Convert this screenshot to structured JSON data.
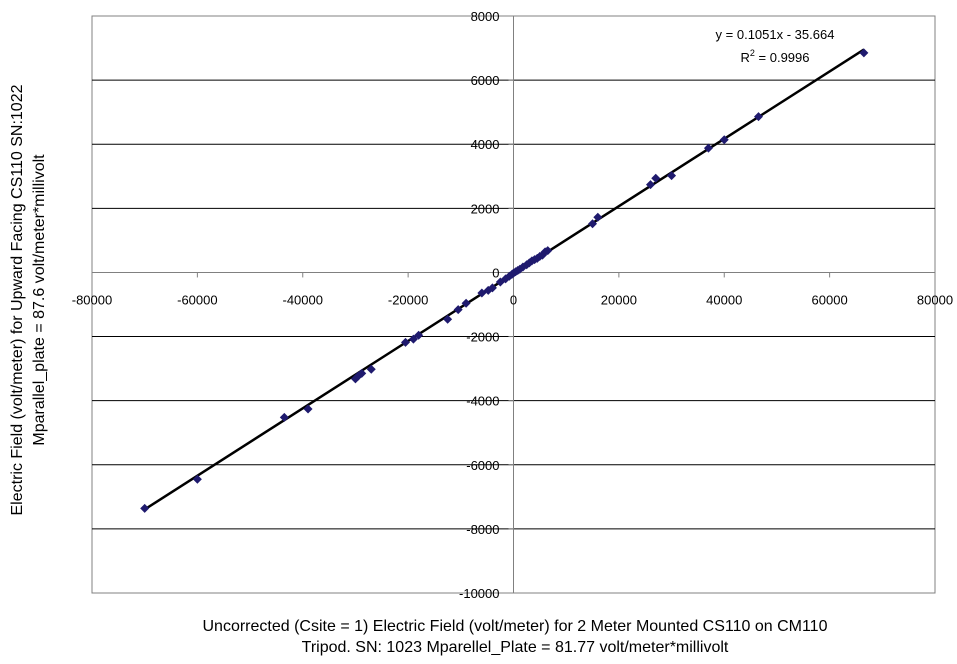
{
  "chart_data": {
    "type": "scatter",
    "xlim": [
      -80000,
      80000
    ],
    "ylim": [
      -10000,
      8000
    ],
    "x_ticks": [
      "-80000",
      "-60000",
      "-40000",
      "-20000",
      "0",
      "20000",
      "40000",
      "60000",
      "80000"
    ],
    "y_ticks": [
      "8000",
      "6000",
      "4000",
      "2000",
      "0",
      "-2000",
      "-4000",
      "-6000",
      "-8000",
      "-10000"
    ],
    "grid": "horizontal major gridlines",
    "xlabel_line1": "Uncorrected (Csite = 1) Electric Field (volt/meter) for 2 Meter Mounted CS110 on CM110",
    "xlabel_line2": "Tripod. SN: 1023 Mparellel_Plate = 81.77 volt/meter*millivolt",
    "ylabel_line1": "Electric Field (volt/meter) for Upward Facing CS110 SN:1022",
    "ylabel_line2": "Mparallel_plate = 87.6 volt/meter*millivolt",
    "trendline": {
      "slope": 0.1051,
      "intercept": -35.664,
      "equation": "y = 0.1051x - 35.664",
      "r2_prefix": "R",
      "r2_sup": "2",
      "r2_value": " = 0.9996"
    },
    "marker_color": "#1f1a6e",
    "line_color": "#000000",
    "points": [
      {
        "x": -70000,
        "y": -7360
      },
      {
        "x": -60000,
        "y": -6450
      },
      {
        "x": -43500,
        "y": -4520
      },
      {
        "x": -39000,
        "y": -4260
      },
      {
        "x": -30000,
        "y": -3320
      },
      {
        "x": -29500,
        "y": -3240
      },
      {
        "x": -28800,
        "y": -3150
      },
      {
        "x": -27000,
        "y": -3020
      },
      {
        "x": -20500,
        "y": -2180
      },
      {
        "x": -19000,
        "y": -2080
      },
      {
        "x": -18000,
        "y": -1960
      },
      {
        "x": -12500,
        "y": -1460
      },
      {
        "x": -10500,
        "y": -1160
      },
      {
        "x": -9000,
        "y": -960
      },
      {
        "x": -6000,
        "y": -640
      },
      {
        "x": -4800,
        "y": -560
      },
      {
        "x": -4000,
        "y": -480
      },
      {
        "x": -2500,
        "y": -300
      },
      {
        "x": -1500,
        "y": -200
      },
      {
        "x": -800,
        "y": -120
      },
      {
        "x": -300,
        "y": -60
      },
      {
        "x": 0,
        "y": -20
      },
      {
        "x": 400,
        "y": 20
      },
      {
        "x": 800,
        "y": 60
      },
      {
        "x": 1200,
        "y": 100
      },
      {
        "x": 1800,
        "y": 170
      },
      {
        "x": 2500,
        "y": 240
      },
      {
        "x": 3000,
        "y": 300
      },
      {
        "x": 3500,
        "y": 360
      },
      {
        "x": 4000,
        "y": 400
      },
      {
        "x": 4500,
        "y": 440
      },
      {
        "x": 5000,
        "y": 500
      },
      {
        "x": 5500,
        "y": 540
      },
      {
        "x": 6000,
        "y": 640
      },
      {
        "x": 6500,
        "y": 680
      },
      {
        "x": 15000,
        "y": 1520
      },
      {
        "x": 16000,
        "y": 1720
      },
      {
        "x": 26000,
        "y": 2740
      },
      {
        "x": 27000,
        "y": 2940
      },
      {
        "x": 30000,
        "y": 3020
      },
      {
        "x": 37000,
        "y": 3880
      },
      {
        "x": 40000,
        "y": 4140
      },
      {
        "x": 46500,
        "y": 4860
      },
      {
        "x": 66500,
        "y": 6850
      }
    ]
  }
}
